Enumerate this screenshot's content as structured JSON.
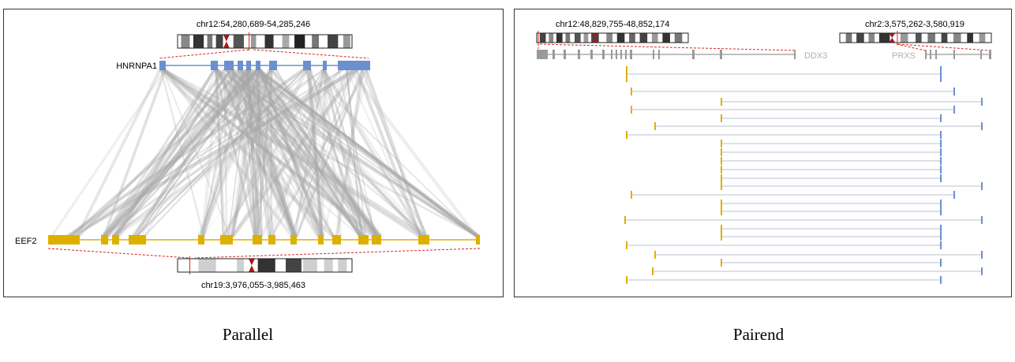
{
  "parallel": {
    "caption": "Parallel",
    "top_region_label": "chr12:54,280,689-54,285,246",
    "bottom_region_label": "chr19:3,976,055-3,985,463",
    "top_gene": {
      "name": "HNRNPA1",
      "color": "#6b8fd0"
    },
    "bottom_gene": {
      "name": "EEF2",
      "color": "#ddb000"
    },
    "link_color": "#a8a8a8",
    "zoom_line_color": "#dd2222"
  },
  "pairend": {
    "caption": "Pairend",
    "left_region_label": "chr12:48,829,755-48,852,174",
    "right_region_label": "chr2:3,575,262-3,580,919",
    "left_gene": {
      "name": "DDX3",
      "color": "#ddb000"
    },
    "right_gene": {
      "name": "PRXS",
      "color": "#6b8fd0"
    },
    "track_color": "#9a9a9a",
    "read_line_color": "#b8c2d2"
  }
}
